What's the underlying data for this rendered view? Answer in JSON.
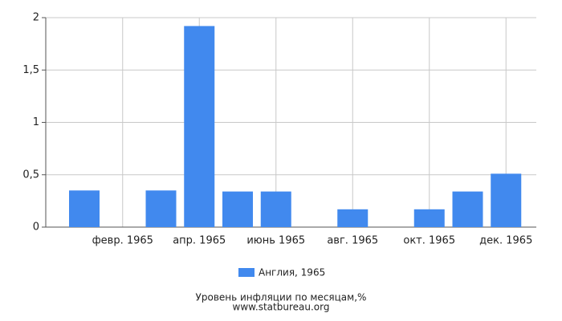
{
  "chart_data": {
    "type": "bar",
    "title": "Уровень инфляции по месяцам,%",
    "subtitle": "www.statbureau.org",
    "categories": [
      null,
      "февр. 1965",
      null,
      "апр. 1965",
      null,
      "июнь 1965",
      null,
      "авг. 1965",
      null,
      "окт. 1965",
      null,
      "дек. 1965"
    ],
    "series": [
      {
        "name": "Англия, 1965",
        "color": "#4189ee",
        "values": [
          0.35,
          0,
          0.35,
          1.92,
          0.34,
          0.34,
          0,
          0.17,
          0,
          0.17,
          0.34,
          0.51
        ]
      }
    ],
    "ylim": [
      0,
      2
    ],
    "yticks": [
      0,
      {
        "value": 0.5,
        "label": "0,5"
      },
      1,
      {
        "value": 1.5,
        "label": "1,5"
      },
      2
    ],
    "grid": true,
    "legend": "bottom"
  }
}
